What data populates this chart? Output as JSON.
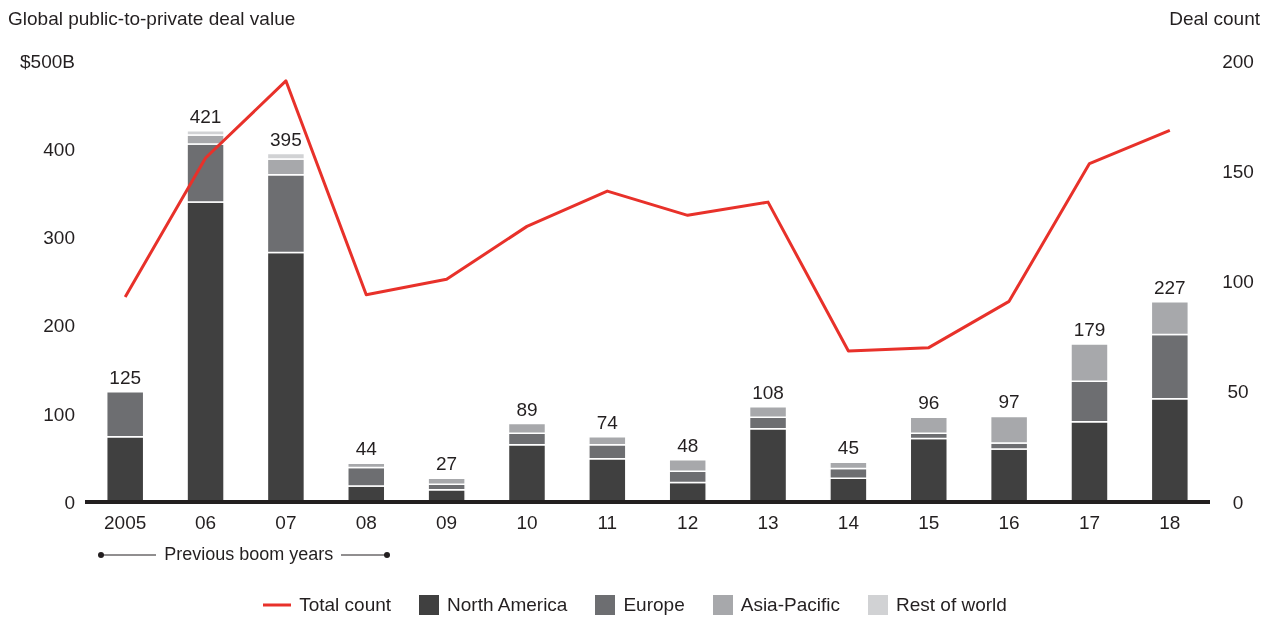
{
  "chart_data": {
    "type": "bar",
    "ylabel": "Global public-to-private deal value",
    "y2label": "Deal count",
    "categories": [
      "2005",
      "06",
      "07",
      "08",
      "09",
      "10",
      "11",
      "12",
      "13",
      "14",
      "15",
      "16",
      "17",
      "18"
    ],
    "stacked": true,
    "series": [
      {
        "name": "Total count",
        "type": "line",
        "axis": "y2",
        "color": "#e8312a",
        "values": [
          93,
          156,
          191,
          94,
          101,
          125,
          141,
          130,
          136,
          68.5,
          70,
          91,
          153.5,
          168.5
        ]
      },
      {
        "name": "North America",
        "color": "#404040",
        "values": [
          74,
          340,
          283,
          18,
          14,
          65,
          49,
          22,
          83,
          27,
          72,
          60,
          91,
          117
        ]
      },
      {
        "name": "Europe",
        "color": "#6d6e71",
        "values": [
          51,
          66,
          88,
          21,
          6,
          13,
          16,
          13,
          13,
          11,
          6,
          7,
          46,
          73
        ]
      },
      {
        "name": "Asia-Pacific",
        "color": "#a7a8ab",
        "values": [
          null,
          10,
          18,
          5,
          7,
          11,
          9,
          13,
          12,
          7,
          18,
          30,
          42,
          37
        ]
      },
      {
        "name": "Rest of world",
        "color": "#d1d2d4",
        "values": [
          null,
          5,
          6,
          null,
          null,
          null,
          null,
          null,
          null,
          null,
          null,
          null,
          null,
          null
        ]
      }
    ],
    "totals": [
      "125",
      "421",
      "395",
      "44",
      "27",
      "89",
      "74",
      "48",
      "108",
      "45",
      "96",
      "97",
      "179",
      "227"
    ],
    "ylim": [
      0,
      500
    ],
    "yticks": [
      0,
      100,
      200,
      300,
      400,
      {
        "value": 500,
        "label": "$500B"
      }
    ],
    "y2lim": [
      0,
      200
    ],
    "y2ticks": [
      0,
      50,
      100,
      150,
      200
    ],
    "annotations": [
      "Previous boom years"
    ],
    "grid": false,
    "legend": "bottom",
    "marker": "none",
    "line_style": "solid"
  }
}
